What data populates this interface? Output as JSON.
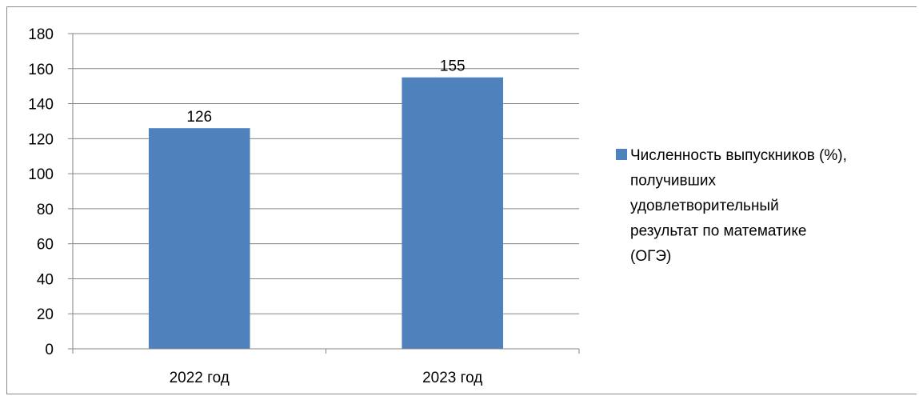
{
  "chart_data": {
    "type": "bar",
    "categories": [
      "2022 год",
      "2023 год"
    ],
    "series": [
      {
        "name": "Численность выпускников (%), получивших удовлетворительный результат по математике (ОГЭ)",
        "values": [
          126,
          155
        ],
        "color": "#4f81bd"
      }
    ],
    "data_labels": [
      "126",
      "155"
    ],
    "title": "",
    "xlabel": "",
    "ylabel": "",
    "ylim": [
      0,
      180
    ],
    "y_ticks": [
      0,
      20,
      40,
      60,
      80,
      100,
      120,
      140,
      160,
      180
    ],
    "y_tick_labels": [
      "0",
      "20",
      "40",
      "60",
      "80",
      "100",
      "120",
      "140",
      "160",
      "180"
    ],
    "grid": true,
    "legend_position": "right",
    "legend_lines": [
      "Численность выпускников (%),",
      "получивших",
      "удовлетворительный",
      "результат по математике",
      "(ОГЭ)"
    ],
    "colors": {
      "bar": "#4f81bd",
      "grid": "#868686",
      "axis": "#868686",
      "text": "#000000"
    }
  }
}
